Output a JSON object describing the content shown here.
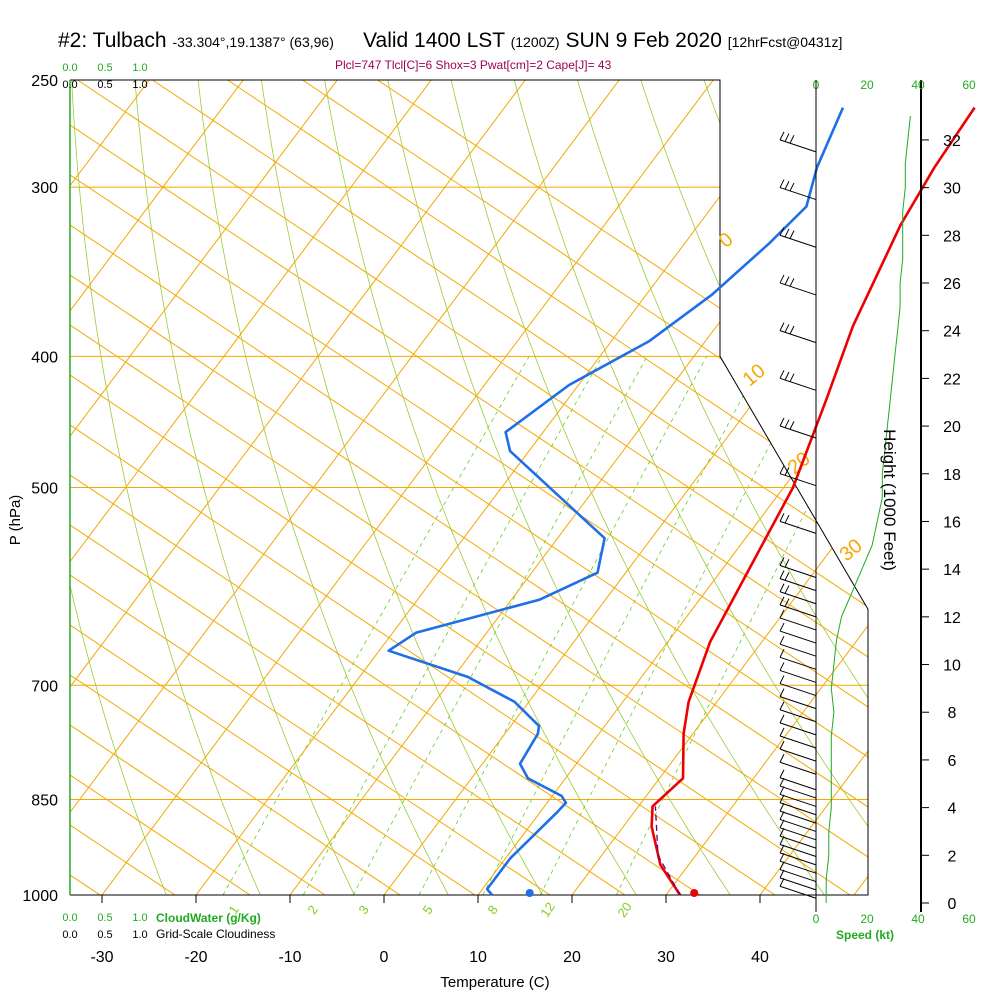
{
  "header": {
    "station": "#2: Tulbach",
    "coords": "-33.304°,19.1387° (63,96)",
    "valid": "Valid 1400 LST",
    "utc": "(1200Z)",
    "date": "SUN 9 Feb 2020",
    "forecast": "[12hrFcst@0431z]",
    "indices": "Plcl=747 Tlcl[C]=6 Shox=3 Pwat[cm]=2 Cape[J]= 43"
  },
  "legend": {
    "cloud_water": "CloudWater (g/Kg)",
    "cloudiness": "Grid-Scale Cloudiness",
    "cw_ticks": [
      "0.0",
      "0.5",
      "1.0"
    ],
    "gs_ticks": [
      "0.0",
      "0.5",
      "1.0"
    ],
    "speed_label": "Speed (kt)",
    "speed_ticks": [
      "0",
      "20",
      "40",
      "60"
    ]
  },
  "chart_data": {
    "type": "line",
    "title": "Valid 1400 LST (1200Z) SUN 9 Feb 2020",
    "xlabel": "Temperature (C)",
    "ylabel": "P (hPa)",
    "y2label": "Height (1000 Feet)",
    "xlim": [
      -30,
      40
    ],
    "ylim": [
      1000,
      250
    ],
    "x_ticks": [
      "-30",
      "-20",
      "-10",
      "0",
      "10",
      "20",
      "30",
      "40"
    ],
    "p_ticks": [
      "250",
      "300",
      "400",
      "500",
      "700",
      "850",
      "1000"
    ],
    "height_ticks": [
      "0",
      "2",
      "4",
      "6",
      "8",
      "10",
      "12",
      "14",
      "16",
      "18",
      "20",
      "22",
      "24",
      "26",
      "28",
      "30",
      "32"
    ],
    "isotherm_labels": [
      "10",
      "0",
      "-10",
      "-20",
      "-30"
    ],
    "isotherm_labels_right": [
      "0",
      "10",
      "20",
      "30"
    ],
    "mixing_ratio_labels": [
      "1",
      "2",
      "3",
      "5",
      "8",
      "12",
      "20"
    ],
    "series": [
      {
        "name": "Temperature",
        "color": "#ee0000",
        "points": [
          [
            31.5,
            1000
          ],
          [
            27,
            950
          ],
          [
            23,
            890
          ],
          [
            21.5,
            860
          ],
          [
            22.5,
            820
          ],
          [
            19,
            760
          ],
          [
            17,
            720
          ],
          [
            14.5,
            650
          ],
          [
            12.5,
            560
          ],
          [
            11,
            500
          ],
          [
            7.5,
            430
          ],
          [
            4.5,
            380
          ],
          [
            1.5,
            320
          ],
          [
            0.5,
            290
          ],
          [
            0,
            262
          ]
        ]
      },
      {
        "name": "Dewpoint",
        "color": "#1f6fe8",
        "points": [
          [
            11.5,
            1000
          ],
          [
            10.5,
            990
          ],
          [
            10.5,
            940
          ],
          [
            11.8,
            870
          ],
          [
            12,
            855
          ],
          [
            11,
            845
          ],
          [
            6,
            820
          ],
          [
            4,
            800
          ],
          [
            3.5,
            760
          ],
          [
            3,
            750
          ],
          [
            -1.5,
            720
          ],
          [
            -8.5,
            690
          ],
          [
            -19,
            660
          ],
          [
            -17.5,
            640
          ],
          [
            -7,
            605
          ],
          [
            -3,
            578
          ],
          [
            -5,
            545
          ],
          [
            -22,
            470
          ],
          [
            -24,
            455
          ],
          [
            -21,
            420
          ],
          [
            -16,
            390
          ],
          [
            -13,
            360
          ],
          [
            -11,
            330
          ],
          [
            -10,
            310
          ],
          [
            -12,
            290
          ],
          [
            -14,
            262
          ]
        ]
      },
      {
        "name": "Parcel",
        "color": "#6a007a",
        "dashed": true,
        "points": [
          [
            31.5,
            1000
          ],
          [
            26,
            935
          ],
          [
            21.8,
            860
          ]
        ]
      }
    ],
    "surface_points": [
      {
        "name": "surface temperature",
        "x": 33,
        "p": 1000,
        "color": "#ee0000"
      },
      {
        "name": "surface dewpoint",
        "x": 15.5,
        "p": 1000,
        "color": "#1f6fe8"
      }
    ],
    "wind_profile_kt": {
      "heights_kft": [
        0,
        1,
        2,
        3,
        4,
        5,
        6,
        7,
        8,
        9,
        10,
        11,
        12,
        13,
        14,
        15,
        16,
        17,
        18,
        19,
        20,
        21,
        22,
        23,
        24,
        25,
        26,
        27,
        28,
        29,
        30,
        31,
        32,
        33
      ],
      "speeds": [
        4,
        4,
        5,
        5,
        6,
        6,
        6,
        6,
        7,
        6,
        7,
        8,
        10,
        14,
        18,
        22,
        24,
        26,
        26,
        27,
        28,
        29,
        30,
        31,
        32,
        33,
        33,
        34,
        34,
        34,
        35,
        35,
        36,
        37
      ]
    }
  }
}
